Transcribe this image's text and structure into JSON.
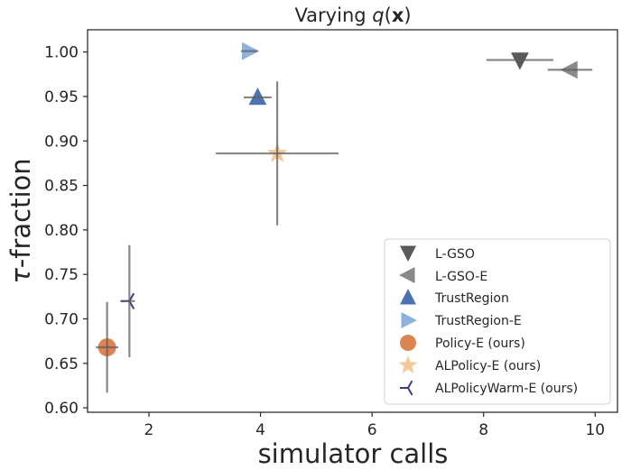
{
  "chart_data": {
    "type": "scatter",
    "title": "Varying q(x)",
    "title_parts": {
      "prefix": "Varying ",
      "func": "q",
      "open": "(",
      "bold": "x",
      "close": ")"
    },
    "xlabel": "simulator calls",
    "ylabel_parts": {
      "symbol": "τ",
      "rest": "-fraction"
    },
    "xlim": [
      0.9,
      10.4
    ],
    "ylim": [
      0.595,
      1.025
    ],
    "xticks": [
      2,
      4,
      6,
      8,
      10
    ],
    "xtick_labels": [
      "2",
      "4",
      "6",
      "8",
      "10"
    ],
    "yticks": [
      0.6,
      0.65,
      0.7,
      0.75,
      0.8,
      0.85,
      0.9,
      0.95,
      1.0
    ],
    "ytick_labels": [
      "0.60",
      "0.65",
      "0.70",
      "0.75",
      "0.80",
      "0.85",
      "0.90",
      "0.95",
      "1.00"
    ],
    "grid": false,
    "legend_position": "bottom-right",
    "series": [
      {
        "name": "L-GSO",
        "marker": "triangle-down",
        "color": "#595959",
        "x": 8.65,
        "y": 0.991,
        "xerr": 0.6,
        "yerr": 0.0
      },
      {
        "name": "L-GSO-E",
        "marker": "triangle-left",
        "color": "#8a8a8a",
        "x": 9.55,
        "y": 0.98,
        "xerr": 0.4,
        "yerr": 0.0
      },
      {
        "name": "TrustRegion",
        "marker": "triangle-up",
        "color": "#4c72b0",
        "x": 3.95,
        "y": 0.949,
        "xerr": 0.25,
        "yerr": 0.0
      },
      {
        "name": "TrustRegion-E",
        "marker": "triangle-right",
        "color": "#8fb2dc",
        "x": 3.8,
        "y": 1.001,
        "xerr": 0.15,
        "yerr": 0.0
      },
      {
        "name": "Policy-E (ours)",
        "marker": "circle",
        "color": "#dd8452",
        "x": 1.25,
        "y": 0.668,
        "xerr": 0.2,
        "yerr": 0.051
      },
      {
        "name": "ALPolicy-E (ours)",
        "marker": "star",
        "color": "#f3c99a",
        "x": 4.3,
        "y": 0.886,
        "xerr": 1.1,
        "yerr": 0.081
      },
      {
        "name": "ALPolicyWarm-E (ours)",
        "marker": "tri-left",
        "color": "#3f3a8a",
        "x": 1.65,
        "y": 0.72,
        "xerr": 0.1,
        "yerr": 0.063
      }
    ]
  }
}
